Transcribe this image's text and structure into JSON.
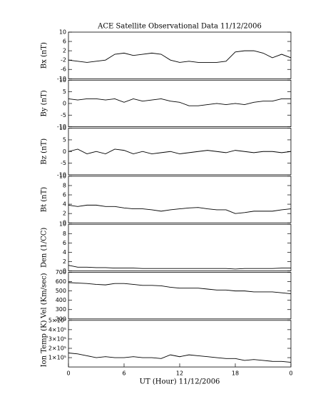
{
  "chart_data": [
    {
      "type": "line",
      "title": "ACE Satellite Observational Data   11/12/2006",
      "ylabel": "Bx (nT)",
      "x": [
        0,
        1,
        2,
        3,
        4,
        5,
        6,
        7,
        8,
        9,
        10,
        11,
        12,
        13,
        14,
        15,
        16,
        17,
        18,
        19,
        20,
        21,
        22,
        23,
        24
      ],
      "values": [
        -2,
        -2.5,
        -3,
        -2.5,
        -2,
        0.5,
        1,
        0,
        0.5,
        1,
        0.5,
        -2,
        -3,
        -2.5,
        -3,
        -3,
        -3,
        -2.5,
        1.5,
        2,
        2,
        1,
        -1,
        0.5,
        -1
      ],
      "xlim": [
        0,
        24
      ],
      "ylim": [
        -10,
        10
      ],
      "yticks": [
        10,
        6,
        2,
        -2,
        -6,
        -10
      ],
      "color": "#000000"
    },
    {
      "type": "line",
      "ylabel": "By (nT)",
      "x": [
        0,
        1,
        2,
        3,
        4,
        5,
        6,
        7,
        8,
        9,
        10,
        11,
        12,
        13,
        14,
        15,
        16,
        17,
        18,
        19,
        20,
        21,
        22,
        23,
        24
      ],
      "values": [
        2,
        1.5,
        2,
        2,
        1.5,
        2,
        0.5,
        2,
        1,
        1.5,
        2,
        1,
        0.5,
        -1,
        -1,
        -0.5,
        0,
        -0.5,
        0,
        -0.5,
        0.5,
        1,
        1,
        2,
        2
      ],
      "xlim": [
        0,
        24
      ],
      "ylim": [
        -10,
        10
      ],
      "yticks": [
        10,
        5,
        0,
        -5,
        -10
      ],
      "color": "#000000"
    },
    {
      "type": "line",
      "ylabel": "Bz (nT)",
      "x": [
        0,
        1,
        2,
        3,
        4,
        5,
        6,
        7,
        8,
        9,
        10,
        11,
        12,
        13,
        14,
        15,
        16,
        17,
        18,
        19,
        20,
        21,
        22,
        23,
        24
      ],
      "values": [
        0,
        1,
        -1,
        0,
        -1,
        1,
        0.5,
        -1,
        0,
        -1,
        -0.5,
        0,
        -1,
        -0.5,
        0,
        0.5,
        0,
        -0.5,
        0.5,
        0,
        -0.5,
        0,
        0,
        -0.5,
        0
      ],
      "xlim": [
        0,
        24
      ],
      "ylim": [
        -10,
        10
      ],
      "yticks": [
        10,
        5,
        0,
        -5,
        -10
      ],
      "color": "#000000"
    },
    {
      "type": "line",
      "ylabel": "Bt (nT)",
      "x": [
        0,
        1,
        2,
        3,
        4,
        5,
        6,
        7,
        8,
        9,
        10,
        11,
        12,
        13,
        14,
        15,
        16,
        17,
        18,
        19,
        20,
        21,
        22,
        23,
        24
      ],
      "values": [
        3.8,
        3.5,
        3.8,
        3.8,
        3.5,
        3.5,
        3.2,
        3.0,
        3.0,
        2.8,
        2.5,
        2.8,
        3.0,
        3.2,
        3.3,
        3.0,
        2.8,
        2.8,
        2.0,
        2.2,
        2.5,
        2.5,
        2.5,
        2.8,
        3.0
      ],
      "xlim": [
        0,
        24
      ],
      "ylim": [
        0,
        10
      ],
      "yticks": [
        10,
        8,
        6,
        4,
        2,
        0
      ],
      "color": "#000000"
    },
    {
      "type": "line",
      "ylabel": "Den (1/CC)",
      "x": [
        0,
        1,
        2,
        3,
        4,
        5,
        6,
        7,
        8,
        9,
        10,
        11,
        12,
        13,
        14,
        15,
        16,
        17,
        18,
        19,
        20,
        21,
        22,
        23,
        24
      ],
      "values": [
        1.2,
        0.8,
        0.8,
        0.7,
        0.7,
        0.6,
        0.6,
        0.6,
        0.5,
        0.5,
        0.5,
        0.5,
        0.5,
        0.5,
        0.5,
        0.5,
        0.5,
        0.5,
        0.4,
        0.5,
        0.5,
        0.5,
        0.5,
        0.6,
        0.6
      ],
      "xlim": [
        0,
        24
      ],
      "ylim": [
        0,
        10
      ],
      "yticks": [
        10,
        8,
        6,
        4,
        2,
        0
      ],
      "color": "#000000"
    },
    {
      "type": "line",
      "ylabel": "Vel (Km/sec)",
      "x": [
        0,
        1,
        2,
        3,
        4,
        5,
        6,
        7,
        8,
        9,
        10,
        11,
        12,
        13,
        14,
        15,
        16,
        17,
        18,
        19,
        20,
        21,
        22,
        23,
        24
      ],
      "values": [
        590,
        585,
        580,
        570,
        565,
        580,
        580,
        570,
        560,
        560,
        555,
        540,
        530,
        530,
        530,
        520,
        510,
        510,
        500,
        500,
        490,
        490,
        490,
        480,
        470
      ],
      "xlim": [
        0,
        24
      ],
      "ylim": [
        200,
        700
      ],
      "yticks": [
        700,
        600,
        500,
        400,
        300,
        200
      ],
      "color": "#000000"
    },
    {
      "type": "line",
      "ylabel": "Ion Temp (K)",
      "xlabel": "UT (Hour)  11/12/2006",
      "x": [
        0,
        1,
        2,
        3,
        4,
        5,
        6,
        7,
        8,
        9,
        10,
        11,
        12,
        13,
        14,
        15,
        16,
        17,
        18,
        19,
        20,
        21,
        22,
        23,
        24
      ],
      "values": [
        150000,
        140000,
        120000,
        100000,
        110000,
        100000,
        100000,
        110000,
        100000,
        100000,
        90000,
        130000,
        110000,
        130000,
        120000,
        110000,
        100000,
        90000,
        90000,
        70000,
        80000,
        70000,
        60000,
        60000,
        50000
      ],
      "xlim": [
        0,
        24
      ],
      "ylim": [
        0,
        500000
      ],
      "yticks": [
        {
          "value": 500000,
          "label": "5×10⁵"
        },
        {
          "value": 400000,
          "label": "4×10⁵"
        },
        {
          "value": 300000,
          "label": "3×10⁵"
        },
        {
          "value": 200000,
          "label": "2×10⁵"
        },
        {
          "value": 100000,
          "label": "1×10⁵"
        }
      ],
      "xticks": [
        0,
        6,
        12,
        18,
        {
          "value": 24,
          "label": "0"
        }
      ],
      "color": "#000000"
    }
  ]
}
